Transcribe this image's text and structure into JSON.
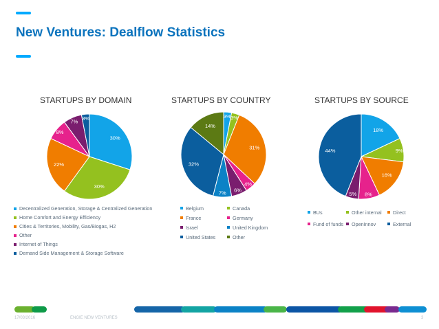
{
  "slide": {
    "title": "New Ventures: Dealflow Statistics",
    "footer_date": "17/03/2016",
    "footer_company": "ENGIE NEW VENTURES",
    "page_number": "3",
    "accent_color": "#00aaff",
    "title_color": "#0b73bd"
  },
  "footer_colors": [
    "#6bb12f",
    "#0e9a48",
    "#1565a8",
    "#13a4a3",
    "#0b82c6",
    "#4ab548",
    "#0c55a5",
    "#12a04a",
    "#e1132c",
    "#7a2a8f",
    "#0e8fd3"
  ],
  "chart_data": [
    {
      "type": "pie",
      "title": "STARTUPS BY DOMAIN",
      "slices": [
        {
          "label": "Decentralized Generation, Storage & Centralized Generation",
          "value": 30,
          "display": "30%",
          "color": "#12a4e8"
        },
        {
          "label": "Home Comfort and Energy Efficiency",
          "value": 30,
          "display": "30%",
          "color": "#94c11f"
        },
        {
          "label": "Cities & Territories, Mobility, Gas/Biogas, H2",
          "value": 22,
          "display": "22%",
          "color": "#f07d00"
        },
        {
          "label": "Other",
          "value": 8,
          "display": "8%",
          "color": "#e6228c"
        },
        {
          "label": "Internet of Things",
          "value": 7,
          "display": "7%",
          "color": "#7a1d6e"
        },
        {
          "label": "Demand Side Management & Storage Software",
          "value": 3,
          "display": "3%",
          "color": "#0b5e9e"
        }
      ]
    },
    {
      "type": "pie",
      "title": "STARTUPS BY COUNTRY",
      "slices": [
        {
          "label": "Belgium",
          "value": 3,
          "display": "3%",
          "color": "#12a4e8"
        },
        {
          "label": "Canada",
          "value": 3,
          "display": "3%",
          "color": "#94c11f"
        },
        {
          "label": "France",
          "value": 31,
          "display": "31%",
          "color": "#f07d00"
        },
        {
          "label": "Germany",
          "value": 4,
          "display": "4%",
          "color": "#e6228c"
        },
        {
          "label": "Israel",
          "value": 6,
          "display": "6%",
          "color": "#7a1d6e"
        },
        {
          "label": "United Kingdom",
          "value": 7,
          "display": "7%",
          "color": "#0b82c6"
        },
        {
          "label": "United States",
          "value": 32,
          "display": "32%",
          "color": "#0b5e9e"
        },
        {
          "label": "Other",
          "value": 14,
          "display": "14%",
          "color": "#5c7a14"
        }
      ]
    },
    {
      "type": "pie",
      "title": "STARTUPS BY SOURCE",
      "slices": [
        {
          "label": "BUs",
          "value": 18,
          "display": "18%",
          "color": "#12a4e8"
        },
        {
          "label": "Other internal",
          "value": 9,
          "display": "9%",
          "color": "#94c11f"
        },
        {
          "label": "Direct",
          "value": 16,
          "display": "16%",
          "color": "#f07d00"
        },
        {
          "label": "Fund of funds",
          "value": 8,
          "display": "8%",
          "color": "#e6228c"
        },
        {
          "label": "OpenInnov",
          "value": 5,
          "display": "5%",
          "color": "#7a1d6e"
        },
        {
          "label": "External",
          "value": 44,
          "display": "44%",
          "color": "#0b5e9e"
        }
      ]
    }
  ]
}
